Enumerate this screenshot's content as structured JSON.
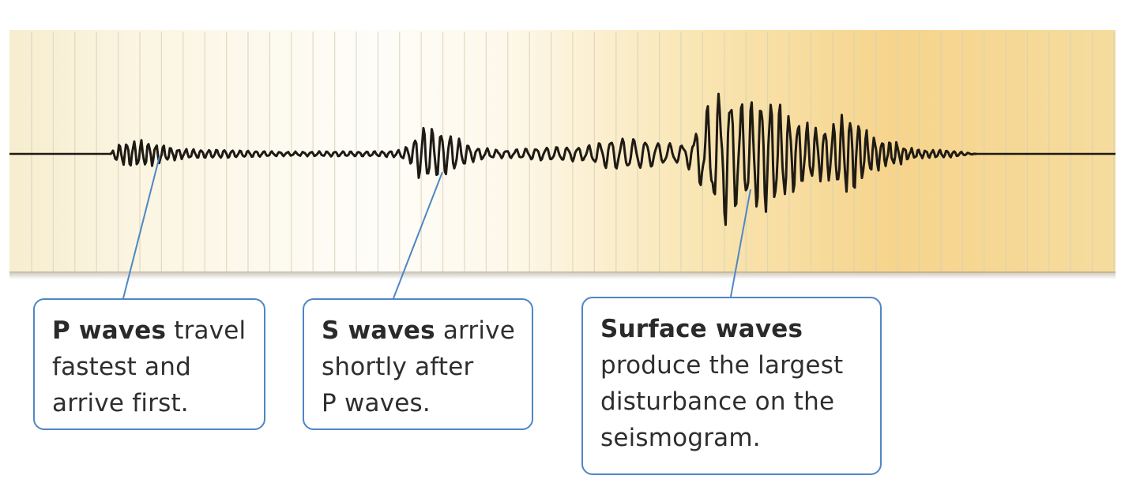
{
  "callouts": {
    "p": {
      "term": "P waves",
      "rest": "travel",
      "line2": "fastest and",
      "line3": "arrive first."
    },
    "s": {
      "term": "S waves",
      "rest": "arrive",
      "line2": "shortly after",
      "line3": "P waves."
    },
    "surface": {
      "term": "Surface waves",
      "line2": "produce the largest",
      "line3": "disturbance on the",
      "line4": "seismogram."
    }
  },
  "colors": {
    "paper_left": "#faf4e2",
    "paper_mid": "#fdfbf4",
    "paper_right": "#f6d58a",
    "grid_line": "#d9cfb6",
    "trace": "#1e1a14",
    "leader_line": "#4f86c6",
    "callout_border": "#4f86c6"
  }
}
